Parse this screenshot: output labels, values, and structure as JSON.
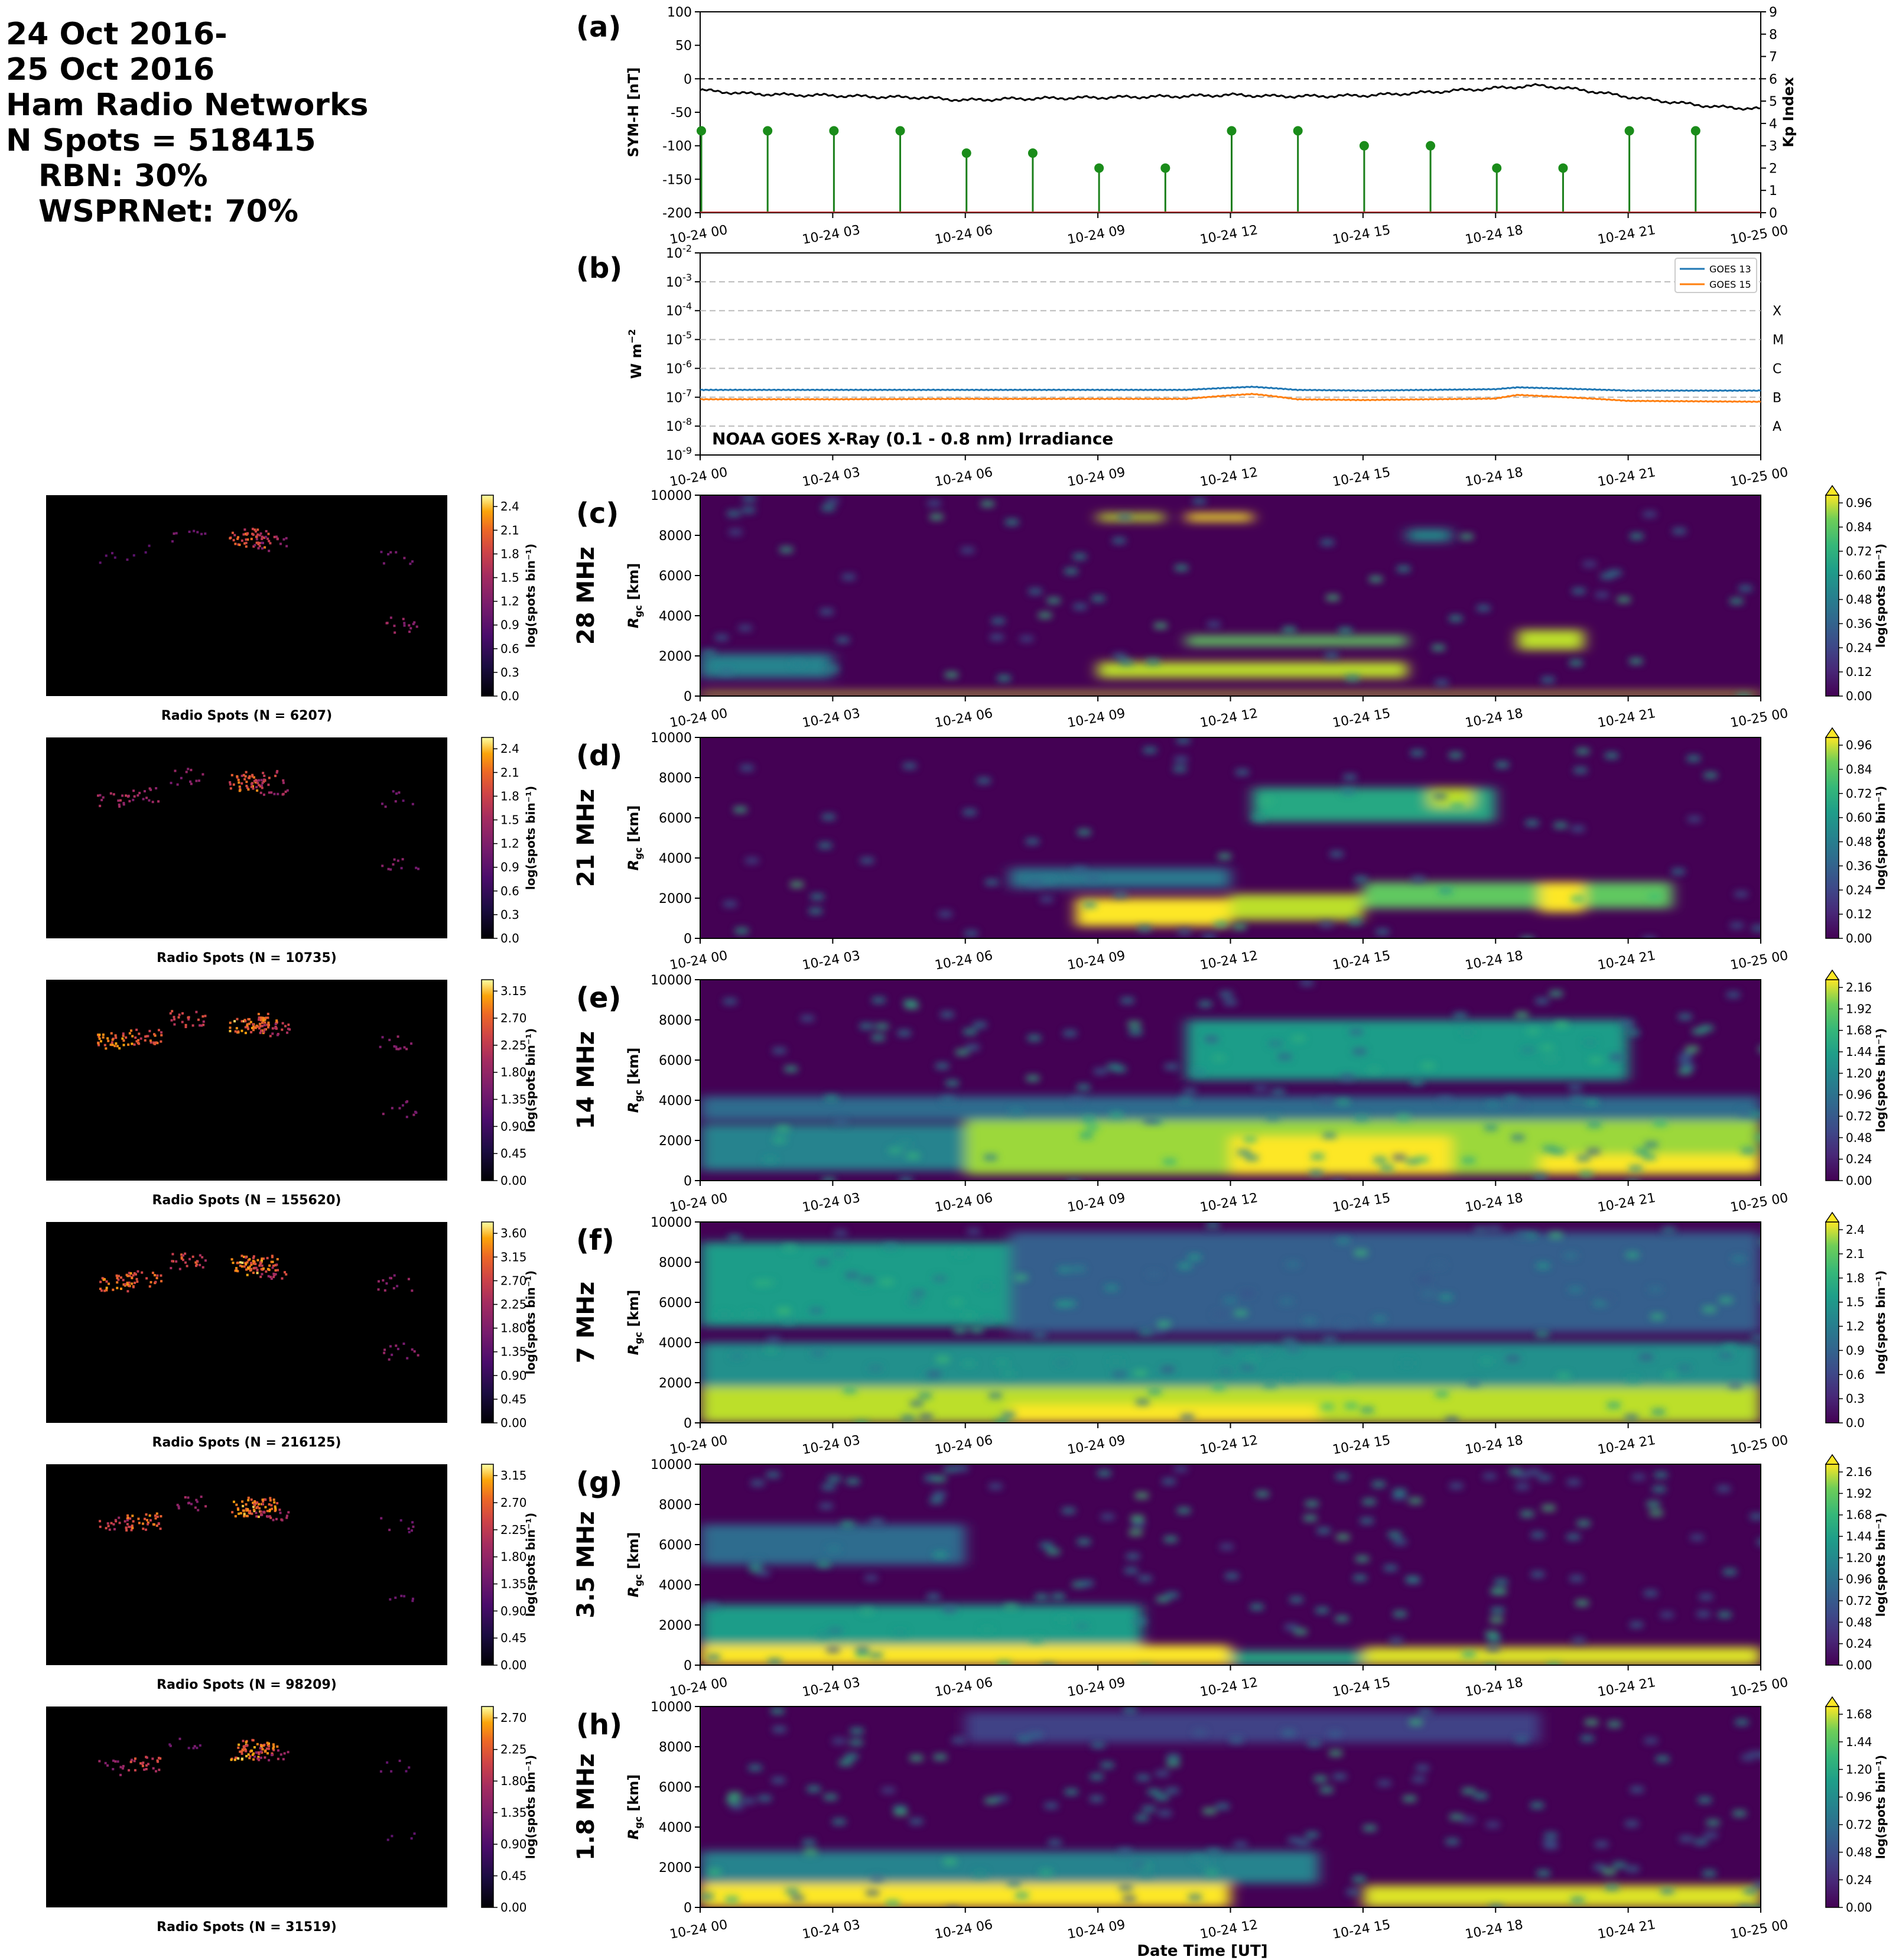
{
  "header": {
    "line1": "24 Oct 2016-",
    "line2": "25 Oct 2016",
    "line3": "Ham Radio Networks",
    "line4": "N Spots = 518415",
    "line5": "RBN: 30%",
    "line6": "WSPRNet: 70%"
  },
  "time_ticks": [
    "10-24 00",
    "10-24 03",
    "10-24 06",
    "10-24 09",
    "10-24 12",
    "10-24 15",
    "10-24 18",
    "10-24 21",
    "10-25 00"
  ],
  "xlabel": "Date Time [UT]",
  "colors": {
    "symh_line": "#000000",
    "kp_stem": "#1a7f1a",
    "kp_dot": "#1a8c1a",
    "kp_axis_red": "#e00000",
    "goes13": "#1f77b4",
    "goes15": "#ff7f0e",
    "map_bg": "#000000",
    "coast": "#ffffff"
  },
  "chart_data": [
    {
      "panel": "(a)",
      "type": "line",
      "ylabel": "SYM-H [nT]",
      "ylim": [
        -200,
        100
      ],
      "yticks": [
        "100",
        "50",
        "0",
        "-50",
        "-100",
        "-150",
        "-200"
      ],
      "ylabel_right": "Kp Index",
      "ylim_right": [
        0,
        9
      ],
      "yticks_right": [
        "9",
        "8",
        "7",
        "6",
        "5",
        "4",
        "3",
        "2",
        "1",
        "0"
      ],
      "symh": {
        "x_hours": [
          0,
          1,
          2,
          3,
          4,
          5,
          6,
          7,
          8,
          9,
          10,
          11,
          12,
          13,
          14,
          15,
          16,
          17,
          18,
          19,
          20,
          21,
          22,
          23,
          24
        ],
        "values": [
          -17,
          -22,
          -24,
          -25,
          -27,
          -28,
          -32,
          -30,
          -29,
          -28,
          -27,
          -26,
          -24,
          -26,
          -26,
          -25,
          -22,
          -18,
          -14,
          -10,
          -17,
          -27,
          -35,
          -42,
          -45
        ]
      },
      "kp": {
        "x_hours": [
          0,
          1.5,
          3,
          4.5,
          6,
          7.5,
          9,
          10.5,
          12,
          13.5,
          15,
          16.5,
          18,
          19.5,
          21,
          22.5
        ],
        "values": [
          3.67,
          3.67,
          3.67,
          3.67,
          2.67,
          2.67,
          2.0,
          2.0,
          3.67,
          3.67,
          3.0,
          3.0,
          2.0,
          2.0,
          3.67,
          3.67
        ]
      }
    },
    {
      "panel": "(b)",
      "type": "line",
      "title": "NOAA GOES X-Ray (0.1 - 0.8 nm) Irradiance",
      "ylabel": "W m$^{-2}$",
      "yscale": "log",
      "ylim": [
        1e-09,
        0.01
      ],
      "yticks": [
        "10-2",
        "10-3",
        "10-4",
        "10-5",
        "10-6",
        "10-7",
        "10-8",
        "10-9"
      ],
      "flare_classes": [
        "X",
        "M",
        "C",
        "B",
        "A"
      ],
      "series": [
        {
          "name": "GOES 13",
          "x_hours": [
            0,
            3,
            6,
            9,
            11,
            12.5,
            13.5,
            15,
            18,
            18.5,
            21,
            24
          ],
          "values": [
            1.8e-07,
            1.8e-07,
            1.8e-07,
            1.8e-07,
            1.8e-07,
            2.3e-07,
            1.8e-07,
            1.7e-07,
            1.9e-07,
            2.2e-07,
            1.7e-07,
            1.7e-07
          ]
        },
        {
          "name": "GOES 15",
          "x_hours": [
            0,
            3,
            6,
            9,
            11,
            12.5,
            13.5,
            15,
            18,
            18.5,
            21,
            24
          ],
          "values": [
            8.5e-08,
            8.5e-08,
            8.8e-08,
            8.8e-08,
            8.8e-08,
            1.3e-07,
            8.5e-08,
            8e-08,
            9e-08,
            1.2e-07,
            7.5e-08,
            7e-08
          ]
        }
      ]
    },
    {
      "panel": "(c)",
      "band": "28 MHz",
      "type": "heatmap",
      "ylabel": "R_gc [km]",
      "ylim": [
        0,
        10000
      ],
      "yticks": [
        "10000",
        "8000",
        "6000",
        "4000",
        "2000",
        "0"
      ],
      "cbar_label": "log(spots bin⁻¹)",
      "cbar_ticks": [
        "0.96",
        "0.84",
        "0.72",
        "0.60",
        "0.48",
        "0.36",
        "0.24",
        "0.12",
        "0.00"
      ],
      "map_cbar_ticks": [
        "2.4",
        "2.1",
        "1.8",
        "1.5",
        "1.2",
        "0.9",
        "0.6",
        "0.3",
        "0.0"
      ],
      "map_title": "Radio Spots (N = 6207)",
      "blobs": [
        {
          "t": [
            0,
            24
          ],
          "r": [
            0,
            200
          ],
          "v": 0.95
        },
        {
          "t": [
            0,
            3
          ],
          "r": [
            900,
            2100
          ],
          "v": 0.45
        },
        {
          "t": [
            9,
            16
          ],
          "r": [
            900,
            1700
          ],
          "v": 0.9
        },
        {
          "t": [
            11,
            16
          ],
          "r": [
            2500,
            3000
          ],
          "v": 0.75
        },
        {
          "t": [
            18.5,
            20
          ],
          "r": [
            2300,
            3300
          ],
          "v": 0.9
        },
        {
          "t": [
            9,
            10.5
          ],
          "r": [
            8700,
            9100
          ],
          "v": 0.9
        },
        {
          "t": [
            11,
            12.5
          ],
          "r": [
            8700,
            9100
          ],
          "v": 1.0
        },
        {
          "t": [
            16,
            17
          ],
          "r": [
            7700,
            8300
          ],
          "v": 0.5
        }
      ]
    },
    {
      "panel": "(d)",
      "band": "21 MHz",
      "type": "heatmap",
      "ylabel": "R_gc [km]",
      "ylim": [
        0,
        10000
      ],
      "yticks": [
        "10000",
        "8000",
        "6000",
        "4000",
        "2000",
        "0"
      ],
      "cbar_label": "log(spots bin⁻¹)",
      "cbar_ticks": [
        "0.96",
        "0.84",
        "0.72",
        "0.60",
        "0.48",
        "0.36",
        "0.24",
        "0.12",
        "0.00"
      ],
      "map_cbar_ticks": [
        "2.4",
        "2.1",
        "1.8",
        "1.5",
        "1.2",
        "0.9",
        "0.6",
        "0.3",
        "0.0"
      ],
      "map_title": "Radio Spots (N = 10735)",
      "blobs": [
        {
          "t": [
            8.5,
            12
          ],
          "r": [
            600,
            2000
          ],
          "v": 1.0
        },
        {
          "t": [
            12,
            15
          ],
          "r": [
            900,
            2200
          ],
          "v": 0.9
        },
        {
          "t": [
            15,
            22
          ],
          "r": [
            1500,
            2800
          ],
          "v": 0.75
        },
        {
          "t": [
            19,
            20
          ],
          "r": [
            1300,
            2800
          ],
          "v": 1.0
        },
        {
          "t": [
            12.5,
            18
          ],
          "r": [
            5800,
            7500
          ],
          "v": 0.6
        },
        {
          "t": [
            16.5,
            17.5
          ],
          "r": [
            6500,
            7500
          ],
          "v": 0.9
        },
        {
          "t": [
            7,
            12
          ],
          "r": [
            2500,
            3500
          ],
          "v": 0.4
        }
      ]
    },
    {
      "panel": "(e)",
      "band": "14 MHz",
      "type": "heatmap",
      "ylabel": "R_gc [km]",
      "ylim": [
        0,
        10000
      ],
      "yticks": [
        "10000",
        "8000",
        "6000",
        "4000",
        "2000",
        "0"
      ],
      "cbar_label": "log(spots bin⁻¹)",
      "cbar_ticks": [
        "2.16",
        "1.92",
        "1.68",
        "1.44",
        "1.20",
        "0.96",
        "0.72",
        "0.48",
        "0.24",
        "0.00"
      ],
      "map_cbar_ticks": [
        "3.15",
        "2.70",
        "2.25",
        "1.80",
        "1.35",
        "0.90",
        "0.45",
        "0.00"
      ],
      "map_title": "Radio Spots (N = 155620)",
      "blobs": [
        {
          "t": [
            0,
            6
          ],
          "r": [
            500,
            2800
          ],
          "v": 0.45
        },
        {
          "t": [
            6,
            24
          ],
          "r": [
            300,
            3000
          ],
          "v": 0.85
        },
        {
          "t": [
            12,
            17
          ],
          "r": [
            300,
            2200
          ],
          "v": 1.0
        },
        {
          "t": [
            19,
            24
          ],
          "r": [
            300,
            1300
          ],
          "v": 1.0
        },
        {
          "t": [
            11,
            21
          ],
          "r": [
            5000,
            8000
          ],
          "v": 0.55
        },
        {
          "t": [
            0,
            24
          ],
          "r": [
            3000,
            4200
          ],
          "v": 0.35
        }
      ]
    },
    {
      "panel": "(f)",
      "band": "7 MHz",
      "type": "heatmap",
      "ylabel": "R_gc [km]",
      "ylim": [
        0,
        10000
      ],
      "yticks": [
        "10000",
        "8000",
        "6000",
        "4000",
        "2000",
        "0"
      ],
      "cbar_label": "log(spots bin⁻¹)",
      "cbar_ticks": [
        "2.4",
        "2.1",
        "1.8",
        "1.5",
        "1.2",
        "0.9",
        "0.6",
        "0.3",
        "0.0"
      ],
      "map_cbar_ticks": [
        "3.60",
        "3.15",
        "2.70",
        "2.25",
        "1.80",
        "1.35",
        "0.90",
        "0.45",
        "0.00"
      ],
      "map_title": "Radio Spots (N = 216125)",
      "blobs": [
        {
          "t": [
            0,
            24
          ],
          "r": [
            0,
            1800
          ],
          "v": 0.9
        },
        {
          "t": [
            7,
            14
          ],
          "r": [
            0,
            900
          ],
          "v": 1.0
        },
        {
          "t": [
            0,
            24
          ],
          "r": [
            1800,
            4000
          ],
          "v": 0.5
        },
        {
          "t": [
            0,
            7
          ],
          "r": [
            4800,
            9000
          ],
          "v": 0.55
        },
        {
          "t": [
            7,
            24
          ],
          "r": [
            4500,
            9500
          ],
          "v": 0.3
        }
      ]
    },
    {
      "panel": "(g)",
      "band": "3.5 MHz",
      "type": "heatmap",
      "ylabel": "R_gc [km]",
      "ylim": [
        0,
        10000
      ],
      "yticks": [
        "10000",
        "8000",
        "6000",
        "4000",
        "2000",
        "0"
      ],
      "cbar_label": "log(spots bin⁻¹)",
      "cbar_ticks": [
        "2.16",
        "1.92",
        "1.68",
        "1.44",
        "1.20",
        "0.96",
        "0.72",
        "0.48",
        "0.24",
        "0.00"
      ],
      "map_cbar_ticks": [
        "3.15",
        "2.70",
        "2.25",
        "1.80",
        "1.35",
        "0.90",
        "0.45",
        "0.00"
      ],
      "map_title": "Radio Spots (N = 98209)",
      "blobs": [
        {
          "t": [
            0,
            12
          ],
          "r": [
            0,
            1000
          ],
          "v": 1.0
        },
        {
          "t": [
            0,
            10
          ],
          "r": [
            1000,
            3000
          ],
          "v": 0.55
        },
        {
          "t": [
            15,
            24
          ],
          "r": [
            0,
            900
          ],
          "v": 0.95
        },
        {
          "t": [
            0,
            6
          ],
          "r": [
            5000,
            7000
          ],
          "v": 0.35
        },
        {
          "t": [
            12,
            15
          ],
          "r": [
            0,
            700
          ],
          "v": 0.6
        }
      ]
    },
    {
      "panel": "(h)",
      "band": "1.8 MHz",
      "type": "heatmap",
      "ylabel": "R_gc [km]",
      "ylim": [
        0,
        10000
      ],
      "yticks": [
        "10000",
        "8000",
        "6000",
        "4000",
        "2000",
        "0"
      ],
      "cbar_label": "log(spots bin⁻¹)",
      "cbar_ticks": [
        "1.68",
        "1.44",
        "1.20",
        "0.96",
        "0.72",
        "0.48",
        "0.24",
        "0.00"
      ],
      "map_cbar_ticks": [
        "2.70",
        "2.25",
        "1.80",
        "1.35",
        "0.90",
        "0.45",
        "0.00"
      ],
      "map_title": "Radio Spots (N = 31519)",
      "blobs": [
        {
          "t": [
            0,
            12
          ],
          "r": [
            0,
            1200
          ],
          "v": 1.0
        },
        {
          "t": [
            0,
            14
          ],
          "r": [
            1200,
            2800
          ],
          "v": 0.45
        },
        {
          "t": [
            15,
            24
          ],
          "r": [
            0,
            1100
          ],
          "v": 0.95
        },
        {
          "t": [
            6,
            19
          ],
          "r": [
            8200,
            9700
          ],
          "v": 0.2
        }
      ]
    }
  ]
}
